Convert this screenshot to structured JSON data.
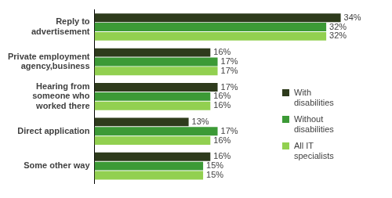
{
  "chart_data": {
    "type": "bar",
    "orientation": "horizontal",
    "categories": [
      [
        "Reply to",
        "advertisement"
      ],
      [
        "Private employment",
        "agency,business"
      ],
      [
        "Hearing from",
        "someone who",
        "worked there"
      ],
      [
        "Direct application"
      ],
      [
        "Some other way"
      ]
    ],
    "series": [
      {
        "name": "With disabilities",
        "color": "#2e3b1c",
        "values": [
          34,
          16,
          17,
          13,
          16
        ],
        "value_labels": [
          "34%",
          "16%",
          "17%",
          "13%",
          "16%"
        ]
      },
      {
        "name": "Without disabilities",
        "color": "#3c9a36",
        "values": [
          32,
          17,
          16,
          17,
          15
        ],
        "value_labels": [
          "32%",
          "17%",
          "16%",
          "17%",
          "15%"
        ]
      },
      {
        "name": "All IT specialists",
        "color": "#92d050",
        "values": [
          32,
          17,
          16,
          16,
          15
        ],
        "value_labels": [
          "32%",
          "17%",
          "16%",
          "16%",
          "15%"
        ]
      }
    ],
    "xlim": [
      0,
      40
    ],
    "grid": false,
    "legend": "right",
    "data_labels": true,
    "tick_labels": "y"
  }
}
